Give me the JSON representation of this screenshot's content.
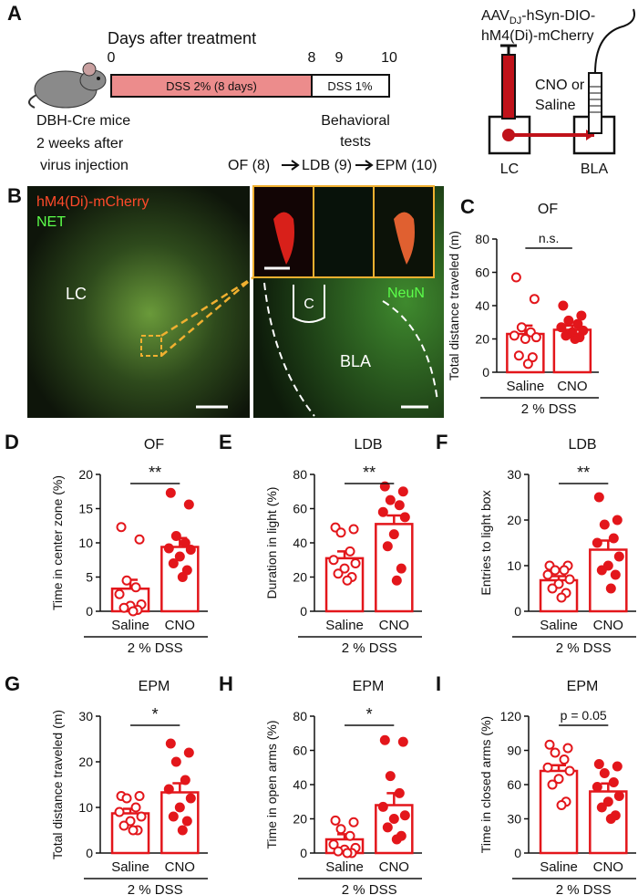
{
  "panel_a": {
    "label": "A",
    "timeline_title": "Days after treatment",
    "days": [
      "0",
      "8",
      "9",
      "10"
    ],
    "phase1": "DSS 2% (8 days)",
    "phase2": "DSS 1%",
    "mouse_lines": [
      "DBH-Cre mice",
      "2 weeks after",
      "virus injection"
    ],
    "behavior_lines": [
      "Behavioral",
      "tests"
    ],
    "tests": [
      "OF (8)",
      "LDB (9)",
      "EPM (10)"
    ],
    "virus_prefix": "AAV",
    "virus_sub": "DJ",
    "virus_suffix": "-hSyn-DIO-",
    "virus_line2": "hM4(Di)-mCherry",
    "drug_lines": [
      "CNO or",
      "Saline"
    ],
    "regions": [
      "LC",
      "BLA"
    ]
  },
  "panel_b": {
    "label": "B",
    "stain1": "hM4(Di)-mCherry",
    "stain2": "NET",
    "region1": "LC",
    "stain3": "NeuN",
    "cannula": "C",
    "region2": "BLA"
  },
  "chart_data": [
    {
      "type": "bar",
      "panel": "C",
      "title": "OF",
      "y_label": "Total distance traveled (m)",
      "categories": [
        "Saline",
        "CNO"
      ],
      "group_label": "2 % DSS",
      "color": "#e3161b",
      "values": [
        23,
        25.5
      ],
      "errors": [
        5,
        2.5
      ],
      "points": [
        [
          57,
          44,
          27,
          24,
          22,
          21,
          20,
          10,
          9,
          5
        ],
        [
          40,
          34,
          31,
          29,
          27,
          25,
          24,
          22,
          21,
          20
        ]
      ],
      "significance": "n.s.",
      "ylim": [
        0,
        80
      ],
      "yticks": [
        0,
        20,
        40,
        60,
        80
      ]
    },
    {
      "type": "bar",
      "panel": "D",
      "title": "OF",
      "y_label": "Time in center zone (%)",
      "categories": [
        "Saline",
        "CNO"
      ],
      "group_label": "2 % DSS",
      "color": "#e3161b",
      "values": [
        3.3,
        9.4
      ],
      "errors": [
        1.3,
        1.3
      ],
      "points": [
        [
          12.3,
          10.5,
          4.5,
          3.5,
          2.5,
          1,
          0.8,
          0.5,
          0.2,
          0
        ],
        [
          17.3,
          15.6,
          11,
          10,
          9.2,
          9,
          8,
          7,
          6,
          5
        ]
      ],
      "significance": "**",
      "ylim": [
        0,
        20
      ],
      "yticks": [
        0,
        5,
        10,
        15,
        20
      ]
    },
    {
      "type": "bar",
      "panel": "E",
      "title": "LDB",
      "y_label": "Duration in light (%)",
      "categories": [
        "Saline",
        "CNO"
      ],
      "group_label": "2 % DSS",
      "color": "#e3161b",
      "values": [
        31,
        51
      ],
      "errors": [
        4,
        5
      ],
      "points": [
        [
          49,
          48,
          46,
          35,
          30,
          28,
          25,
          22,
          20,
          18
        ],
        [
          73,
          70,
          65,
          62,
          58,
          55,
          45,
          38,
          25,
          18
        ]
      ],
      "significance": "**",
      "ylim": [
        0,
        80
      ],
      "yticks": [
        0,
        20,
        40,
        60,
        80
      ]
    },
    {
      "type": "bar",
      "panel": "F",
      "title": "LDB",
      "y_label": "Entries to light box",
      "categories": [
        "Saline",
        "CNO"
      ],
      "group_label": "2 % DSS",
      "color": "#e3161b",
      "values": [
        6.8,
        13.5
      ],
      "errors": [
        0.9,
        2
      ],
      "points": [
        [
          10,
          10,
          9,
          9,
          8,
          7,
          6,
          5,
          4,
          3
        ],
        [
          25,
          20,
          19,
          16,
          15,
          12,
          10,
          9,
          8,
          5
        ]
      ],
      "significance": "**",
      "ylim": [
        0,
        30
      ],
      "yticks": [
        0,
        10,
        20,
        30
      ]
    },
    {
      "type": "bar",
      "panel": "G",
      "title": "EPM",
      "y_label": "Total distance traveled (m)",
      "categories": [
        "Saline",
        "CNO"
      ],
      "group_label": "2 % DSS",
      "color": "#e3161b",
      "values": [
        8.7,
        13.3
      ],
      "errors": [
        1,
        2
      ],
      "points": [
        [
          12.5,
          12.5,
          12,
          10,
          9,
          8,
          7,
          6,
          5,
          5
        ],
        [
          24,
          22,
          20,
          16,
          14,
          12,
          10,
          8,
          7,
          5
        ]
      ],
      "significance": "*",
      "ylim": [
        0,
        30
      ],
      "yticks": [
        0,
        10,
        20,
        30
      ]
    },
    {
      "type": "bar",
      "panel": "H",
      "title": "EPM",
      "y_label": "Time in open arms (%)",
      "categories": [
        "Saline",
        "CNO"
      ],
      "group_label": "2 % DSS",
      "color": "#e3161b",
      "values": [
        8,
        28
      ],
      "errors": [
        3,
        7
      ],
      "points": [
        [
          19,
          18,
          14,
          10,
          5,
          3,
          2,
          1,
          0,
          0
        ],
        [
          66,
          65,
          45,
          35,
          27,
          22,
          20,
          15,
          10,
          8
        ]
      ],
      "significance": "*",
      "ylim": [
        0,
        80
      ],
      "yticks": [
        0,
        20,
        40,
        60,
        80
      ]
    },
    {
      "type": "bar",
      "panel": "I",
      "title": "EPM",
      "y_label": "Time in closed arms (%)",
      "categories": [
        "Saline",
        "CNO"
      ],
      "group_label": "2 % DSS",
      "color": "#e3161b",
      "values": [
        72,
        54
      ],
      "errors": [
        5,
        7
      ],
      "points": [
        [
          95,
          92,
          88,
          82,
          75,
          72,
          65,
          60,
          45,
          42
        ],
        [
          78,
          76,
          70,
          62,
          58,
          50,
          45,
          40,
          33,
          30
        ]
      ],
      "significance": "p = 0.05",
      "ylim": [
        0,
        120
      ],
      "yticks": [
        0,
        30,
        60,
        90,
        120
      ]
    }
  ]
}
